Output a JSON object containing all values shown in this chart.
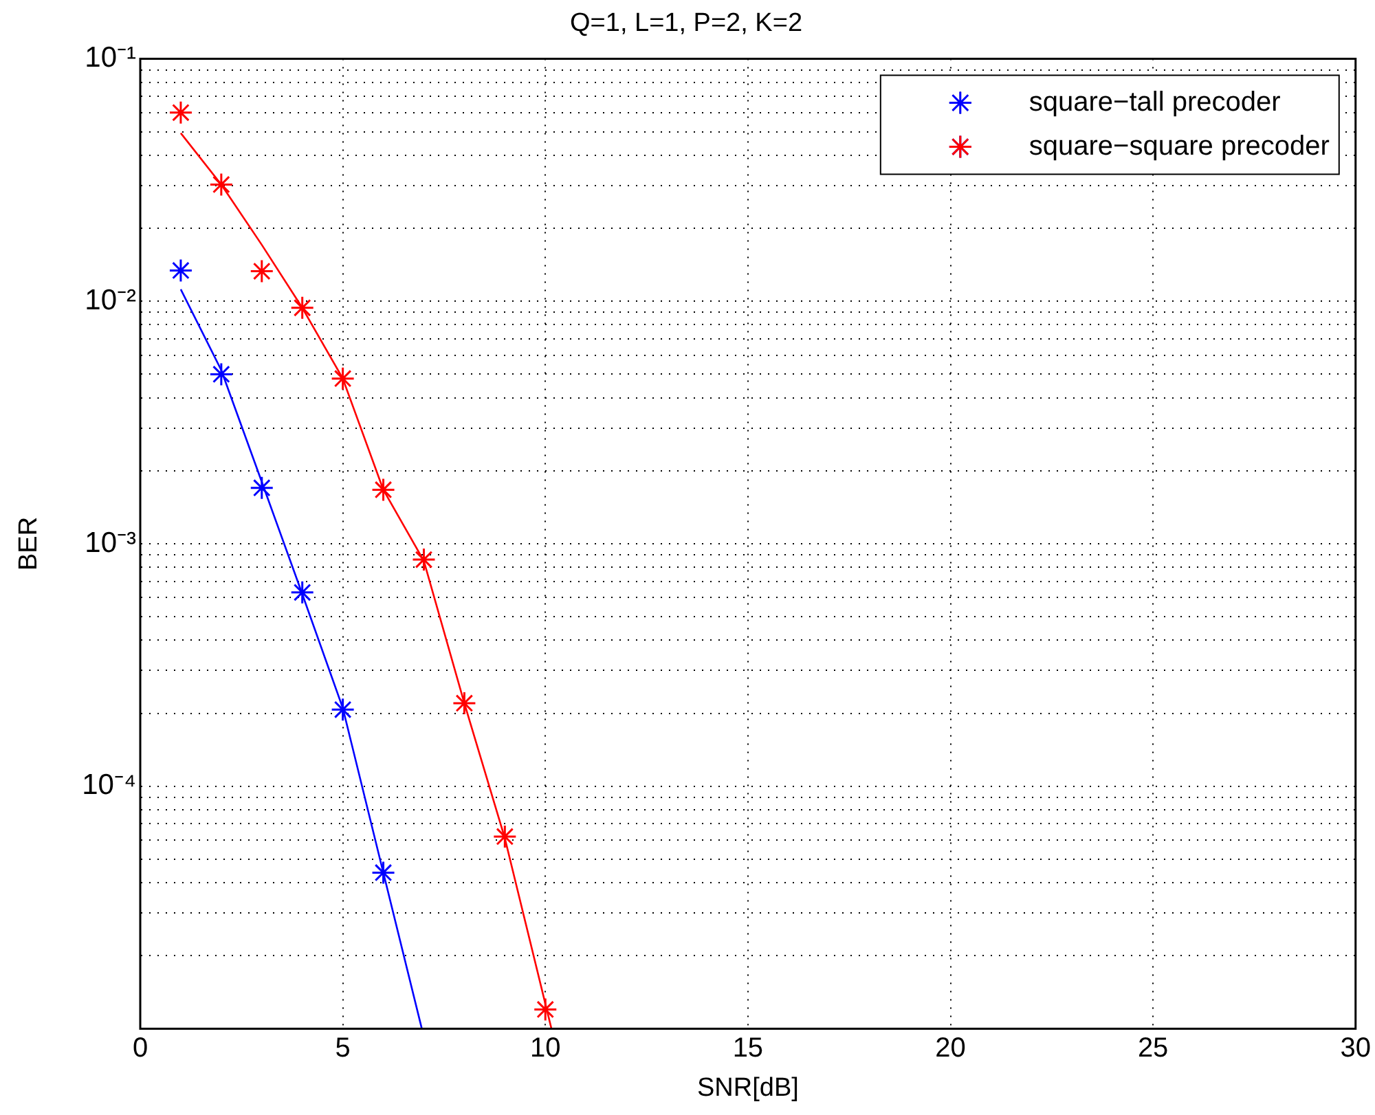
{
  "chart_data": {
    "type": "scatter",
    "title": "Q=1, L=1, P=2, K=2",
    "xlabel": "SNR[dB]",
    "ylabel": "BER",
    "series": [
      {
        "name": "square−tall precoder",
        "color": "#0000ff",
        "marker": "cross",
        "x": [
          1,
          2,
          3,
          4,
          5,
          6
        ],
        "values": [
          0.0134,
          0.005,
          0.0017,
          0.00063,
          0.000207,
          4.4e-05
        ]
      },
      {
        "name": "square−square precoder",
        "color": "#ff0000",
        "marker": "cross",
        "x": [
          1,
          2,
          3,
          4,
          5,
          6,
          7,
          8,
          9,
          10
        ],
        "values": [
          0.06,
          0.0303,
          0.0133,
          0.0094,
          0.0048,
          0.00167,
          0.00086,
          0.00022,
          6.2e-05,
          1.2e-05
        ]
      },
      {
        "color": "#0000ff",
        "type": "line",
        "marker": "none",
        "line_style": "solid",
        "x": [
          1,
          2,
          3,
          4,
          5,
          6,
          6.95
        ],
        "values": [
          0.0112,
          0.0052,
          0.0018,
          0.00062,
          0.00021,
          4.4e-05,
          1e-05
        ]
      },
      {
        "color": "#ff0000",
        "type": "line",
        "marker": "none",
        "line_style": "solid",
        "x": [
          1,
          2,
          3,
          4,
          5,
          6,
          7,
          8,
          9,
          10.15
        ],
        "values": [
          0.0494,
          0.0303,
          0.0171,
          0.0094,
          0.0048,
          0.00167,
          0.00085,
          0.00022,
          6.1e-05,
          1e-05
        ]
      }
    ],
    "log": "y",
    "grid": true,
    "legend": "top right",
    "xlim": [
      0,
      30
    ],
    "xticks": [
      0,
      5,
      10,
      15,
      20,
      25,
      30
    ],
    "ylim": [
      1e-05,
      0.1
    ],
    "yticks": [
      {
        "value": 1e-05,
        "label": null
      },
      {
        "value": 2e-05,
        "label": null
      },
      {
        "value": 3e-05,
        "label": null
      },
      {
        "value": 4e-05,
        "label": null
      },
      {
        "value": 5e-05,
        "label": null
      },
      {
        "value": 6e-05,
        "label": null
      },
      {
        "value": 7e-05,
        "label": null
      },
      {
        "value": 8e-05,
        "label": null
      },
      {
        "value": 9e-05,
        "label": null
      },
      {
        "value": 0.0001,
        "label": "10⁻⁴"
      },
      {
        "value": 0.0002,
        "label": null
      },
      {
        "value": 0.0003,
        "label": null
      },
      {
        "value": 0.0004,
        "label": null
      },
      {
        "value": 0.0005,
        "label": null
      },
      {
        "value": 0.0006,
        "label": null
      },
      {
        "value": 0.0007,
        "label": null
      },
      {
        "value": 0.0008,
        "label": null
      },
      {
        "value": 0.0009,
        "label": null
      },
      {
        "value": 0.001,
        "label": "10⁻³"
      },
      {
        "value": 0.002,
        "label": null
      },
      {
        "value": 0.003,
        "label": null
      },
      {
        "value": 0.004,
        "label": null
      },
      {
        "value": 0.005,
        "label": null
      },
      {
        "value": 0.006,
        "label": null
      },
      {
        "value": 0.007,
        "label": null
      },
      {
        "value": 0.008,
        "label": null
      },
      {
        "value": 0.009,
        "label": null
      },
      {
        "value": 0.01,
        "label": "10⁻²"
      },
      {
        "value": 0.02,
        "label": null
      },
      {
        "value": 0.03,
        "label": null
      },
      {
        "value": 0.04,
        "label": null
      },
      {
        "value": 0.05,
        "label": null
      },
      {
        "value": 0.06,
        "label": null
      },
      {
        "value": 0.07,
        "label": null
      },
      {
        "value": 0.08,
        "label": null
      },
      {
        "value": 0.09,
        "label": null
      },
      {
        "value": 0.1,
        "label": "10⁻¹"
      }
    ]
  }
}
